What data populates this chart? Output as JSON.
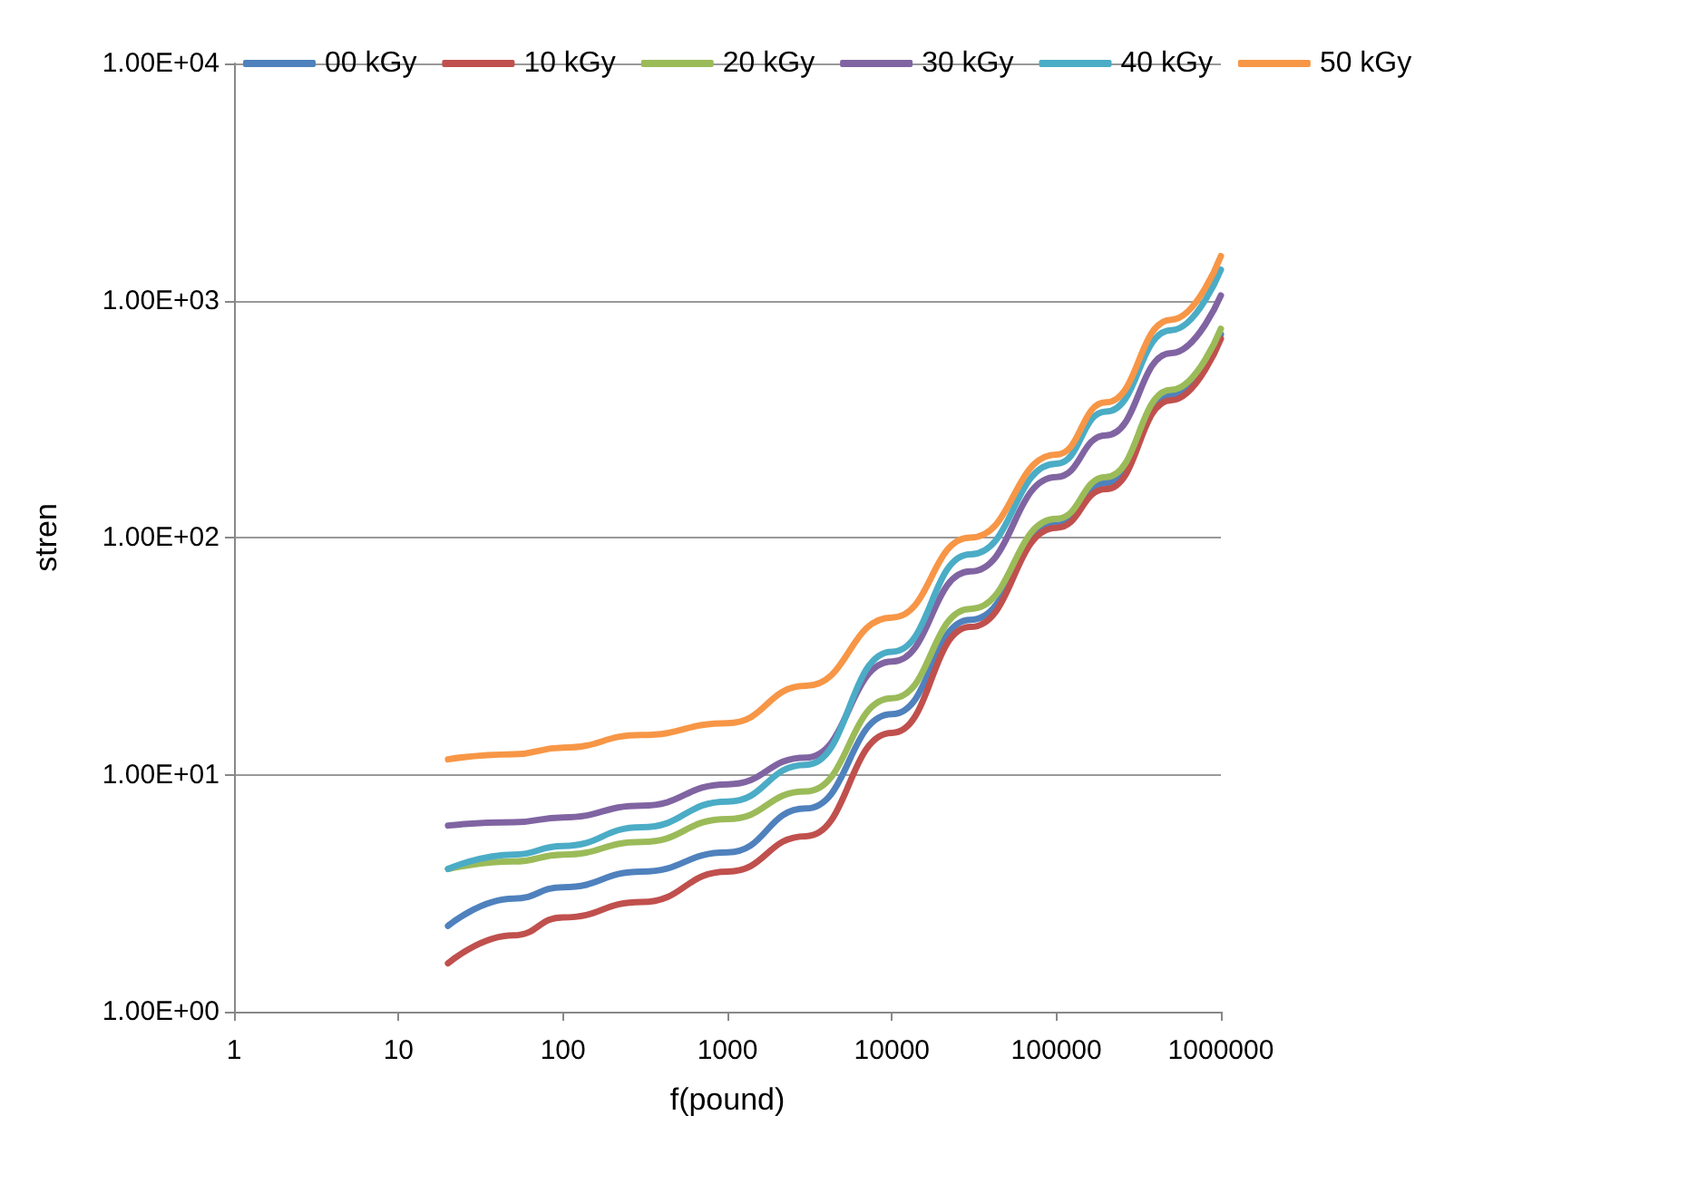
{
  "chart_data": {
    "type": "line",
    "xlabel": "f(pound)",
    "ylabel": "stren",
    "log": "xy",
    "x": [
      20,
      50,
      100,
      300,
      1000,
      3000,
      10000,
      30000,
      100000,
      200000,
      500000,
      1000000
    ],
    "xlim": [
      1,
      1000000
    ],
    "xticks": [
      1,
      10,
      100,
      1000,
      10000,
      100000,
      1000000
    ],
    "ylim": [
      1,
      10000
    ],
    "yticks": [
      {
        "value": 1,
        "label": "1.00E+00"
      },
      {
        "value": 10,
        "label": "1.00E+01"
      },
      {
        "value": 100,
        "label": "1.00E+02"
      },
      {
        "value": 1000,
        "label": "1.00E+03"
      },
      {
        "value": 10000,
        "label": "1.00E+04"
      }
    ],
    "grid": "y",
    "legend": "top",
    "marker": "none",
    "line_style": "solid",
    "series": [
      {
        "name": "00 kGy",
        "color": "#4f81bd",
        "values": [
          2.3,
          3.0,
          3.35,
          3.9,
          4.7,
          7.2,
          18,
          45,
          113,
          170,
          400,
          720
        ]
      },
      {
        "name": "10 kGy",
        "color": "#c0504d",
        "values": [
          1.6,
          2.1,
          2.5,
          2.9,
          3.9,
          5.5,
          15,
          42,
          110,
          160,
          380,
          690
        ]
      },
      {
        "name": "20 kGy",
        "color": "#9bbb59",
        "values": [
          4.0,
          4.3,
          4.6,
          5.2,
          6.5,
          8.5,
          21,
          50,
          120,
          180,
          420,
          760
        ]
      },
      {
        "name": "30 kGy",
        "color": "#8064a2",
        "values": [
          6.1,
          6.3,
          6.6,
          7.4,
          9.1,
          11.8,
          30,
          72,
          180,
          270,
          600,
          1050
        ]
      },
      {
        "name": "40 kGy",
        "color": "#4bacc6",
        "values": [
          4.0,
          4.6,
          5.0,
          6.0,
          7.7,
          11,
          33,
          85,
          205,
          340,
          750,
          1350
        ]
      },
      {
        "name": "50 kGy",
        "color": "#f79646",
        "values": [
          11.6,
          12.2,
          13,
          14.7,
          16.5,
          23.7,
          46,
          100,
          224,
          372,
          830,
          1540
        ]
      }
    ]
  }
}
